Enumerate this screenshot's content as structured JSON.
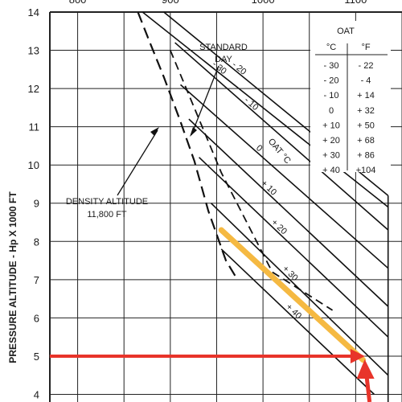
{
  "chart_data": {
    "type": "line",
    "ylabel": "PRESSURE ALTITUDE - Hp X 1000 FT",
    "xlabel": "",
    "xlim": [
      770,
      1150
    ],
    "ylim": [
      3.8,
      14
    ],
    "x_ticks": [
      800,
      900,
      1000,
      1100
    ],
    "y_ticks": [
      4,
      5,
      6,
      7,
      8,
      9,
      10,
      11,
      12,
      13,
      14
    ],
    "grid": true,
    "annotations": {
      "standard_day": [
        "STANDARD",
        "DAY"
      ],
      "density_altitude": [
        "DENSITY ALTITUDE",
        "11,800 FT"
      ],
      "oat_axis_label": "OAT °C"
    },
    "oat_table": {
      "title": "OAT",
      "headers": [
        "°C",
        "°F"
      ],
      "rows": [
        [
          "- 30",
          "- 22"
        ],
        [
          "- 20",
          "- 4"
        ],
        [
          "- 10",
          "+ 14"
        ],
        [
          "0",
          "+ 32"
        ],
        [
          "+ 10",
          "+ 50"
        ],
        [
          "+ 20",
          "+ 68"
        ],
        [
          "+ 30",
          "+ 86"
        ],
        [
          "+ 40",
          "+104"
        ]
      ]
    },
    "series": [
      {
        "name": "- 30",
        "points": [
          [
            870,
            14.0
          ],
          [
            1135,
            8.9
          ]
        ]
      },
      {
        "name": "- 20",
        "points": [
          [
            893,
            14.0
          ],
          [
            1135,
            9.2
          ]
        ]
      },
      {
        "name": "- 10",
        "points": [
          [
            905,
            13.2
          ],
          [
            1135,
            8.3
          ]
        ]
      },
      {
        "name": "0",
        "points": [
          [
            911,
            12.1
          ],
          [
            1135,
            7.3
          ]
        ]
      },
      {
        "name": "+ 10",
        "points": [
          [
            920,
            11.2
          ],
          [
            1135,
            6.3
          ]
        ]
      },
      {
        "name": "+ 20",
        "points": [
          [
            931,
            10.2
          ],
          [
            1135,
            5.5
          ]
        ]
      },
      {
        "name": "+ 30",
        "points": [
          [
            944,
            9.0
          ],
          [
            1135,
            4.5
          ]
        ]
      },
      {
        "name": "+ 40",
        "points": [
          [
            955,
            7.8
          ],
          [
            1120,
            4.0
          ]
        ]
      }
    ],
    "dashed_boundary": [
      [
        865,
        14.0
      ],
      [
        878,
        13.2
      ],
      [
        893,
        12.3
      ],
      [
        910,
        11.2
      ],
      [
        926,
        10.1
      ],
      [
        941,
        8.8
      ],
      [
        960,
        7.5
      ],
      [
        970,
        7.1
      ]
    ],
    "standard_day_line": [
      [
        900,
        13.0
      ],
      [
        955,
        9.8
      ],
      [
        1010,
        7.2
      ],
      [
        1075,
        6.2
      ]
    ],
    "highlight_path": [
      [
        955,
        8.3
      ],
      [
        1108,
        4.9
      ]
    ],
    "reference_arrow": {
      "from": [
        770,
        5.0
      ],
      "to": [
        1110,
        5.0
      ],
      "down_to": [
        1115,
        3.8
      ]
    },
    "colors": {
      "grid": "#222222",
      "curves": "#111111",
      "highlight": "#f5b942",
      "arrow": "#e8342a",
      "background": "#ffffff"
    }
  }
}
